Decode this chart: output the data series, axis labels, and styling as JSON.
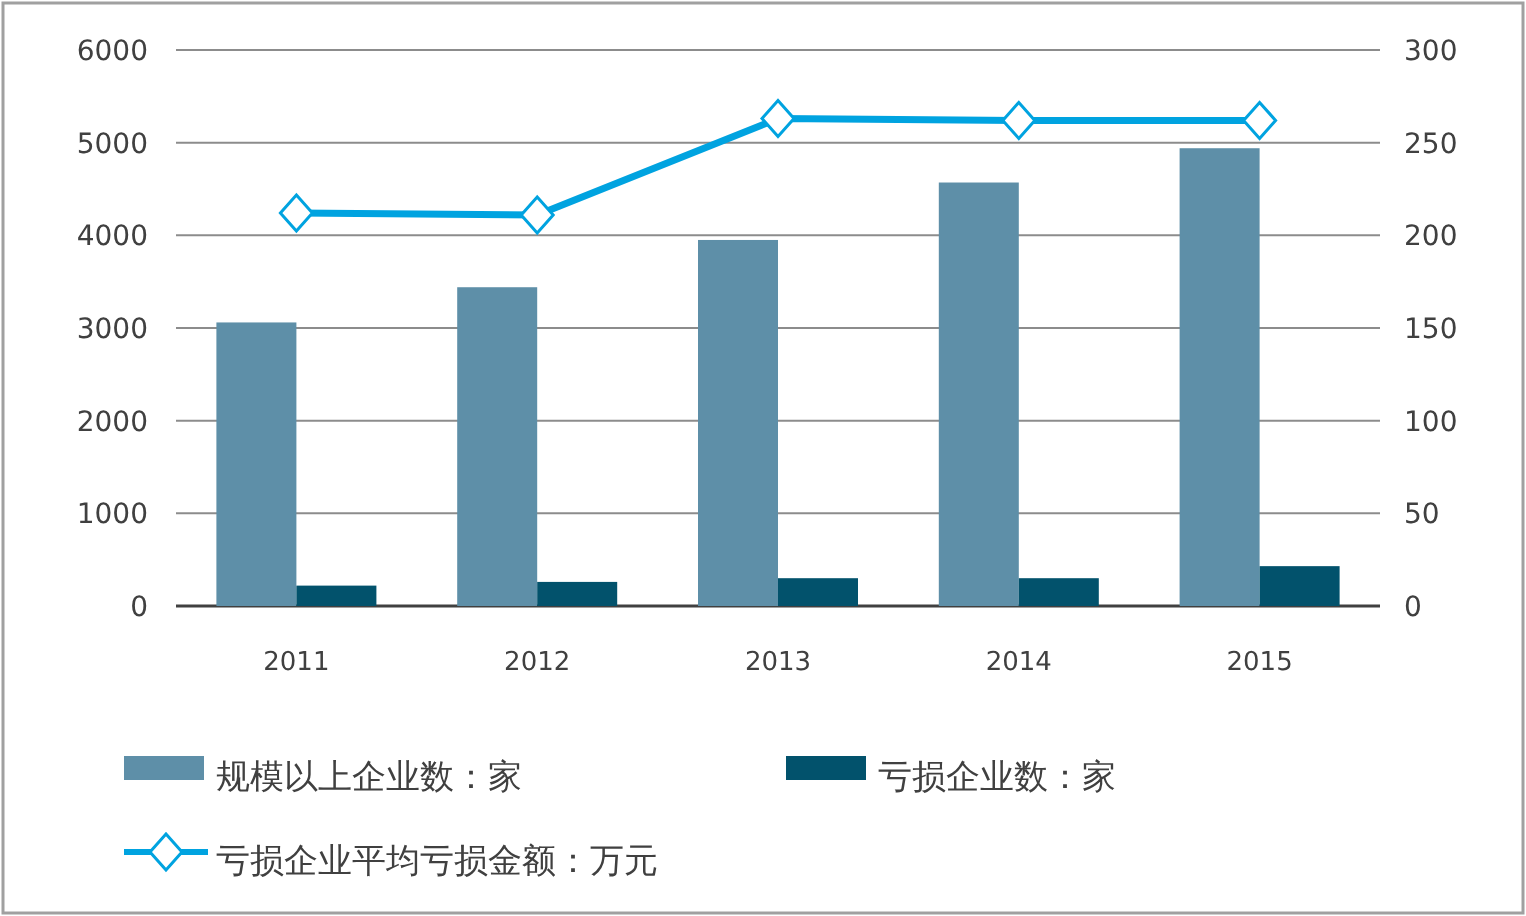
{
  "chart_data": {
    "type": "bar",
    "categories": [
      "2011",
      "2012",
      "2013",
      "2014",
      "2015"
    ],
    "series": [
      {
        "name": "规模以上企业数：家",
        "color": "#5e8fa8",
        "values": [
          3060,
          3440,
          3950,
          4570,
          4940
        ]
      },
      {
        "name": "亏损企业数：家",
        "color": "#02526c",
        "values": [
          220,
          260,
          300,
          300,
          430
        ]
      },
      {
        "name": "亏损企业平均亏损金额：万元",
        "type": "line",
        "axis": "y2",
        "color": "#00a3e0",
        "marker": "diamond",
        "values": [
          212,
          211,
          263,
          262,
          262
        ]
      }
    ],
    "ylim": [
      0,
      6000
    ],
    "yticks": [
      0,
      1000,
      2000,
      3000,
      4000,
      5000,
      6000
    ],
    "y2lim": [
      0,
      300
    ],
    "y2ticks": [
      0,
      50,
      100,
      150,
      200,
      250,
      300
    ],
    "grid": "y",
    "legend": "bottom"
  }
}
